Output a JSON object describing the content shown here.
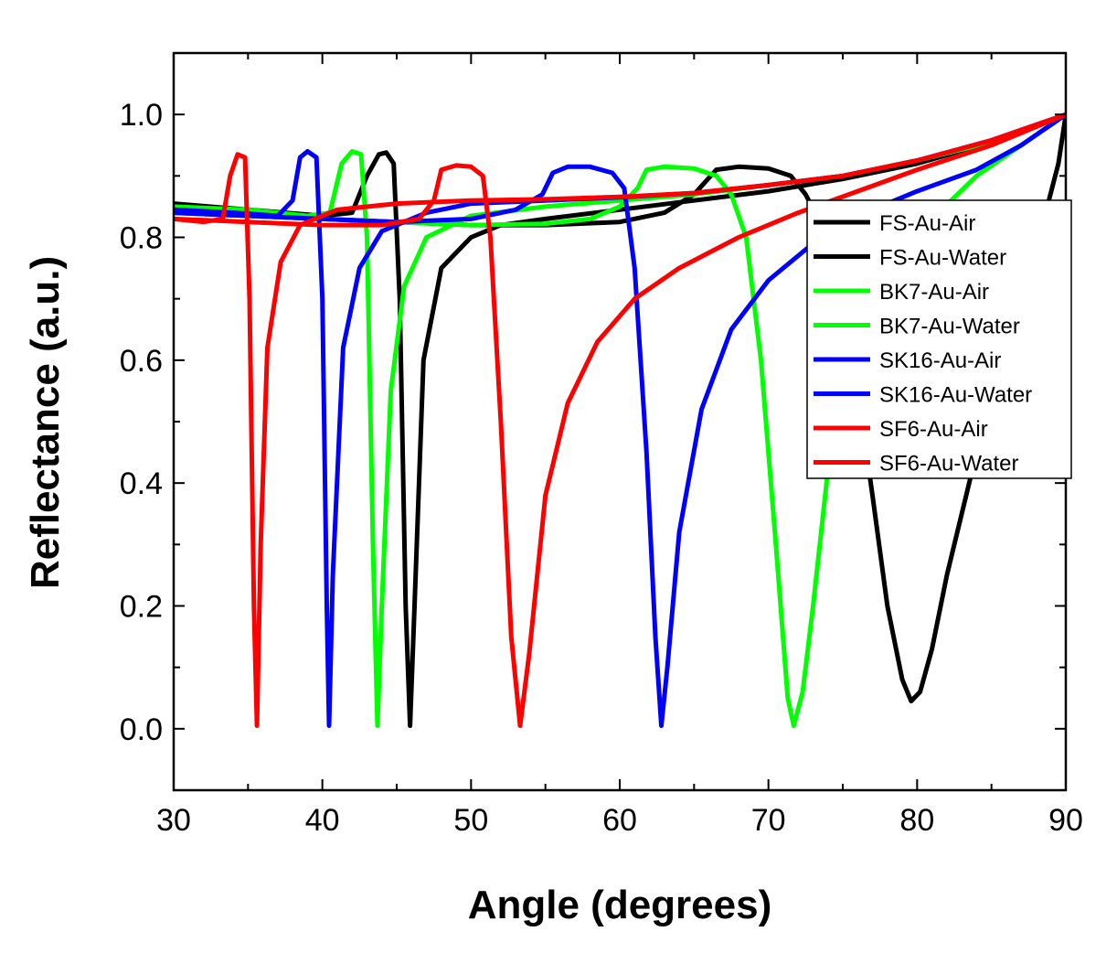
{
  "chart_data": {
    "type": "line",
    "title": "",
    "xlabel": "Angle (degrees)",
    "ylabel": "Reflectance (a.u.)",
    "xlim": [
      30,
      90
    ],
    "ylim": [
      -0.1,
      1.1
    ],
    "xticks": [
      30,
      40,
      50,
      60,
      70,
      80,
      90
    ],
    "xtick_labels": [
      "30",
      "40",
      "50",
      "60",
      "70",
      "80",
      "90"
    ],
    "yticks": [
      0.0,
      0.2,
      0.4,
      0.6,
      0.8,
      1.0
    ],
    "ytick_labels": [
      "0.0",
      "0.2",
      "0.4",
      "0.6",
      "0.8",
      "1.0"
    ],
    "grid": false,
    "legend_position": "right",
    "series": [
      {
        "name": "FS-Au-Air",
        "color": "#000000",
        "points": [
          [
            30,
            0.855
          ],
          [
            35,
            0.845
          ],
          [
            40,
            0.835
          ],
          [
            42,
            0.84
          ],
          [
            43,
            0.9
          ],
          [
            43.8,
            0.935
          ],
          [
            44.3,
            0.938
          ],
          [
            44.8,
            0.92
          ],
          [
            45.2,
            0.7
          ],
          [
            45.6,
            0.2
          ],
          [
            45.9,
            0.005
          ],
          [
            46.2,
            0.2
          ],
          [
            46.8,
            0.6
          ],
          [
            48,
            0.75
          ],
          [
            50,
            0.8
          ],
          [
            52,
            0.82
          ],
          [
            55,
            0.83
          ],
          [
            60,
            0.845
          ],
          [
            65,
            0.86
          ],
          [
            70,
            0.875
          ],
          [
            75,
            0.895
          ],
          [
            80,
            0.92
          ],
          [
            85,
            0.955
          ],
          [
            90,
            1.0
          ]
        ]
      },
      {
        "name": "FS-Au-Water",
        "color": "#000000",
        "points": [
          [
            30,
            0.84
          ],
          [
            40,
            0.83
          ],
          [
            50,
            0.82
          ],
          [
            55,
            0.82
          ],
          [
            60,
            0.825
          ],
          [
            63,
            0.84
          ],
          [
            65,
            0.87
          ],
          [
            66.5,
            0.91
          ],
          [
            68,
            0.915
          ],
          [
            70,
            0.912
          ],
          [
            71.5,
            0.9
          ],
          [
            72.5,
            0.87
          ],
          [
            74,
            0.8
          ],
          [
            75,
            0.7
          ],
          [
            76,
            0.55
          ],
          [
            77,
            0.38
          ],
          [
            78,
            0.2
          ],
          [
            79,
            0.08
          ],
          [
            79.6,
            0.045
          ],
          [
            80.2,
            0.06
          ],
          [
            81,
            0.13
          ],
          [
            82,
            0.25
          ],
          [
            84,
            0.45
          ],
          [
            86,
            0.62
          ],
          [
            88,
            0.78
          ],
          [
            89.5,
            0.92
          ],
          [
            90,
            1.0
          ]
        ]
      },
      {
        "name": "BK7-Au-Air",
        "color": "#00ff00",
        "points": [
          [
            30,
            0.85
          ],
          [
            35,
            0.845
          ],
          [
            39,
            0.835
          ],
          [
            40.5,
            0.84
          ],
          [
            41.3,
            0.92
          ],
          [
            42,
            0.94
          ],
          [
            42.6,
            0.935
          ],
          [
            43,
            0.8
          ],
          [
            43.4,
            0.3
          ],
          [
            43.7,
            0.005
          ],
          [
            44,
            0.2
          ],
          [
            44.6,
            0.55
          ],
          [
            45.5,
            0.72
          ],
          [
            47,
            0.8
          ],
          [
            50,
            0.835
          ],
          [
            55,
            0.85
          ],
          [
            60,
            0.86
          ],
          [
            65,
            0.87
          ],
          [
            70,
            0.885
          ],
          [
            75,
            0.9
          ],
          [
            80,
            0.925
          ],
          [
            85,
            0.955
          ],
          [
            90,
            1.0
          ]
        ]
      },
      {
        "name": "BK7-Au-Water",
        "color": "#00ff00",
        "points": [
          [
            30,
            0.84
          ],
          [
            40,
            0.83
          ],
          [
            50,
            0.82
          ],
          [
            55,
            0.822
          ],
          [
            58,
            0.83
          ],
          [
            60,
            0.85
          ],
          [
            61.2,
            0.88
          ],
          [
            61.8,
            0.91
          ],
          [
            63,
            0.915
          ],
          [
            65,
            0.912
          ],
          [
            66.5,
            0.9
          ],
          [
            67.5,
            0.87
          ],
          [
            68.5,
            0.8
          ],
          [
            69.5,
            0.6
          ],
          [
            70.5,
            0.3
          ],
          [
            71.3,
            0.05
          ],
          [
            71.7,
            0.005
          ],
          [
            72.3,
            0.06
          ],
          [
            73,
            0.2
          ],
          [
            74,
            0.42
          ],
          [
            76,
            0.6
          ],
          [
            78,
            0.72
          ],
          [
            81,
            0.83
          ],
          [
            84,
            0.9
          ],
          [
            87,
            0.95
          ],
          [
            90,
            1.0
          ]
        ]
      },
      {
        "name": "SK16-Au-Air",
        "color": "#0000ff",
        "points": [
          [
            30,
            0.845
          ],
          [
            34,
            0.84
          ],
          [
            37,
            0.835
          ],
          [
            38,
            0.86
          ],
          [
            38.5,
            0.93
          ],
          [
            39,
            0.94
          ],
          [
            39.6,
            0.93
          ],
          [
            40,
            0.7
          ],
          [
            40.3,
            0.2
          ],
          [
            40.45,
            0.005
          ],
          [
            40.7,
            0.25
          ],
          [
            41.4,
            0.62
          ],
          [
            42.5,
            0.75
          ],
          [
            44,
            0.81
          ],
          [
            47,
            0.84
          ],
          [
            50,
            0.855
          ],
          [
            55,
            0.86
          ],
          [
            60,
            0.865
          ],
          [
            65,
            0.872
          ],
          [
            70,
            0.885
          ],
          [
            75,
            0.9
          ],
          [
            80,
            0.925
          ],
          [
            85,
            0.958
          ],
          [
            90,
            1.0
          ]
        ]
      },
      {
        "name": "SK16-Au-Water",
        "color": "#0000ff",
        "points": [
          [
            30,
            0.84
          ],
          [
            40,
            0.83
          ],
          [
            45,
            0.825
          ],
          [
            50,
            0.83
          ],
          [
            53,
            0.845
          ],
          [
            54.8,
            0.87
          ],
          [
            55.5,
            0.905
          ],
          [
            56.5,
            0.915
          ],
          [
            58,
            0.915
          ],
          [
            59.5,
            0.905
          ],
          [
            60.3,
            0.88
          ],
          [
            61,
            0.75
          ],
          [
            61.8,
            0.45
          ],
          [
            62.4,
            0.15
          ],
          [
            62.8,
            0.005
          ],
          [
            63.2,
            0.1
          ],
          [
            64,
            0.32
          ],
          [
            65.5,
            0.52
          ],
          [
            67.5,
            0.65
          ],
          [
            70,
            0.73
          ],
          [
            73,
            0.79
          ],
          [
            76,
            0.835
          ],
          [
            80,
            0.875
          ],
          [
            84,
            0.91
          ],
          [
            87,
            0.95
          ],
          [
            90,
            1.0
          ]
        ]
      },
      {
        "name": "SF6-Au-Air",
        "color": "#ff0000",
        "points": [
          [
            30,
            0.83
          ],
          [
            32,
            0.825
          ],
          [
            33.3,
            0.83
          ],
          [
            33.8,
            0.9
          ],
          [
            34.3,
            0.935
          ],
          [
            34.8,
            0.93
          ],
          [
            35.1,
            0.7
          ],
          [
            35.4,
            0.2
          ],
          [
            35.6,
            0.005
          ],
          [
            35.85,
            0.3
          ],
          [
            36.3,
            0.62
          ],
          [
            37.2,
            0.76
          ],
          [
            38.5,
            0.82
          ],
          [
            41,
            0.845
          ],
          [
            45,
            0.855
          ],
          [
            50,
            0.86
          ],
          [
            55,
            0.862
          ],
          [
            60,
            0.866
          ],
          [
            65,
            0.872
          ],
          [
            70,
            0.885
          ],
          [
            75,
            0.9
          ],
          [
            80,
            0.925
          ],
          [
            85,
            0.958
          ],
          [
            90,
            1.0
          ]
        ]
      },
      {
        "name": "SF6-Au-Water",
        "color": "#ff0000",
        "points": [
          [
            30,
            0.83
          ],
          [
            35,
            0.825
          ],
          [
            40,
            0.82
          ],
          [
            44,
            0.82
          ],
          [
            46.5,
            0.83
          ],
          [
            47.5,
            0.86
          ],
          [
            48,
            0.91
          ],
          [
            49,
            0.917
          ],
          [
            50,
            0.915
          ],
          [
            50.8,
            0.9
          ],
          [
            51.3,
            0.8
          ],
          [
            52,
            0.5
          ],
          [
            52.7,
            0.15
          ],
          [
            53.3,
            0.005
          ],
          [
            53.9,
            0.12
          ],
          [
            55,
            0.38
          ],
          [
            56.5,
            0.53
          ],
          [
            58.5,
            0.63
          ],
          [
            61,
            0.7
          ],
          [
            64,
            0.75
          ],
          [
            68,
            0.8
          ],
          [
            72,
            0.84
          ],
          [
            76,
            0.875
          ],
          [
            80,
            0.91
          ],
          [
            85,
            0.95
          ],
          [
            90,
            1.0
          ]
        ]
      }
    ]
  }
}
